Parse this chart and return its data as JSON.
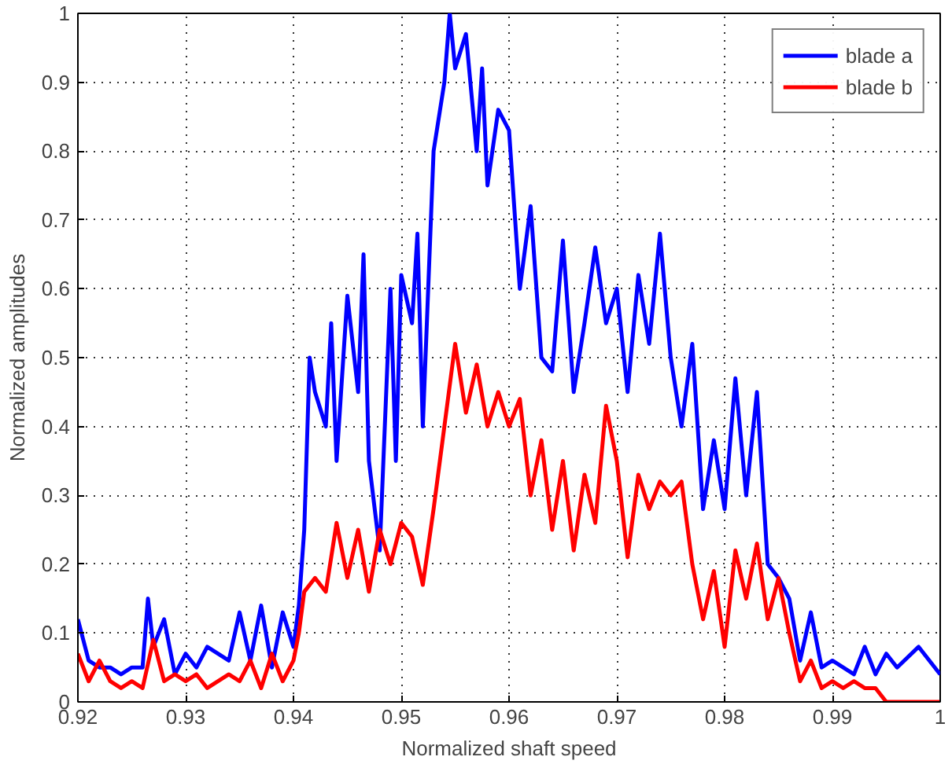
{
  "chart_data": {
    "type": "line",
    "xlabel": "Normalized shaft speed",
    "ylabel": "Normalized amplitudes",
    "xlim": [
      0.92,
      1
    ],
    "ylim": [
      0,
      1
    ],
    "xticks": [
      0.92,
      0.93,
      0.94,
      0.95,
      0.96,
      0.97,
      0.98,
      0.99,
      {
        "value": 1,
        "label": "1"
      }
    ],
    "yticks": [
      0,
      0.1,
      0.2,
      0.3,
      0.4,
      0.5,
      0.6,
      0.7,
      0.8,
      0.9,
      1
    ],
    "grid": true,
    "legend": "top right",
    "line_style": "solid",
    "series": [
      {
        "name": "blade a",
        "color": "#0000ff",
        "x": [
          0.92,
          0.921,
          0.922,
          0.923,
          0.924,
          0.925,
          0.926,
          0.9265,
          0.927,
          0.928,
          0.929,
          0.93,
          0.931,
          0.932,
          0.933,
          0.934,
          0.935,
          0.936,
          0.937,
          0.938,
          0.939,
          0.94,
          0.9405,
          0.941,
          0.9415,
          0.942,
          0.943,
          0.9435,
          0.944,
          0.945,
          0.946,
          0.9465,
          0.947,
          0.948,
          0.949,
          0.9495,
          0.95,
          0.951,
          0.9515,
          0.952,
          0.953,
          0.954,
          0.9545,
          0.955,
          0.956,
          0.957,
          0.9575,
          0.958,
          0.959,
          0.96,
          0.961,
          0.962,
          0.963,
          0.964,
          0.965,
          0.966,
          0.967,
          0.968,
          0.969,
          0.97,
          0.971,
          0.972,
          0.973,
          0.974,
          0.975,
          0.976,
          0.977,
          0.978,
          0.979,
          0.98,
          0.981,
          0.982,
          0.983,
          0.984,
          0.985,
          0.986,
          0.987,
          0.988,
          0.989,
          0.99,
          0.992,
          0.993,
          0.994,
          0.995,
          0.996,
          0.998,
          1.0
        ],
        "values": [
          0.12,
          0.06,
          0.05,
          0.05,
          0.04,
          0.05,
          0.05,
          0.15,
          0.08,
          0.12,
          0.04,
          0.07,
          0.05,
          0.08,
          0.07,
          0.06,
          0.13,
          0.06,
          0.14,
          0.05,
          0.13,
          0.08,
          0.14,
          0.25,
          0.5,
          0.45,
          0.4,
          0.55,
          0.35,
          0.59,
          0.45,
          0.65,
          0.35,
          0.22,
          0.6,
          0.35,
          0.62,
          0.55,
          0.68,
          0.4,
          0.8,
          0.9,
          1.0,
          0.92,
          0.97,
          0.8,
          0.92,
          0.75,
          0.86,
          0.83,
          0.6,
          0.72,
          0.5,
          0.48,
          0.67,
          0.45,
          0.55,
          0.66,
          0.55,
          0.6,
          0.45,
          0.62,
          0.52,
          0.68,
          0.5,
          0.4,
          0.52,
          0.28,
          0.38,
          0.28,
          0.47,
          0.3,
          0.45,
          0.2,
          0.18,
          0.15,
          0.06,
          0.13,
          0.05,
          0.06,
          0.04,
          0.08,
          0.04,
          0.07,
          0.05,
          0.08,
          0.04
        ]
      },
      {
        "name": "blade b",
        "color": "#ff0000",
        "x": [
          0.92,
          0.921,
          0.922,
          0.923,
          0.924,
          0.925,
          0.926,
          0.927,
          0.928,
          0.929,
          0.93,
          0.931,
          0.932,
          0.933,
          0.934,
          0.935,
          0.936,
          0.937,
          0.938,
          0.939,
          0.94,
          0.9405,
          0.941,
          0.942,
          0.943,
          0.944,
          0.945,
          0.946,
          0.947,
          0.948,
          0.949,
          0.95,
          0.951,
          0.952,
          0.953,
          0.954,
          0.955,
          0.956,
          0.957,
          0.958,
          0.959,
          0.96,
          0.961,
          0.962,
          0.963,
          0.964,
          0.965,
          0.966,
          0.967,
          0.968,
          0.969,
          0.97,
          0.971,
          0.972,
          0.973,
          0.974,
          0.975,
          0.976,
          0.977,
          0.978,
          0.979,
          0.98,
          0.981,
          0.982,
          0.983,
          0.984,
          0.985,
          0.986,
          0.987,
          0.988,
          0.989,
          0.99,
          0.991,
          0.992,
          0.993,
          0.994,
          0.995,
          1.0
        ],
        "values": [
          0.07,
          0.03,
          0.06,
          0.03,
          0.02,
          0.03,
          0.02,
          0.09,
          0.03,
          0.04,
          0.03,
          0.04,
          0.02,
          0.03,
          0.04,
          0.03,
          0.06,
          0.02,
          0.07,
          0.03,
          0.06,
          0.1,
          0.16,
          0.18,
          0.16,
          0.26,
          0.18,
          0.25,
          0.16,
          0.25,
          0.2,
          0.26,
          0.24,
          0.17,
          0.28,
          0.4,
          0.52,
          0.42,
          0.49,
          0.4,
          0.45,
          0.4,
          0.44,
          0.3,
          0.38,
          0.25,
          0.35,
          0.22,
          0.33,
          0.26,
          0.43,
          0.35,
          0.21,
          0.33,
          0.28,
          0.32,
          0.3,
          0.32,
          0.2,
          0.12,
          0.19,
          0.08,
          0.22,
          0.15,
          0.23,
          0.12,
          0.18,
          0.1,
          0.03,
          0.06,
          0.02,
          0.03,
          0.02,
          0.03,
          0.02,
          0.02,
          0.0,
          0.0
        ]
      }
    ]
  }
}
